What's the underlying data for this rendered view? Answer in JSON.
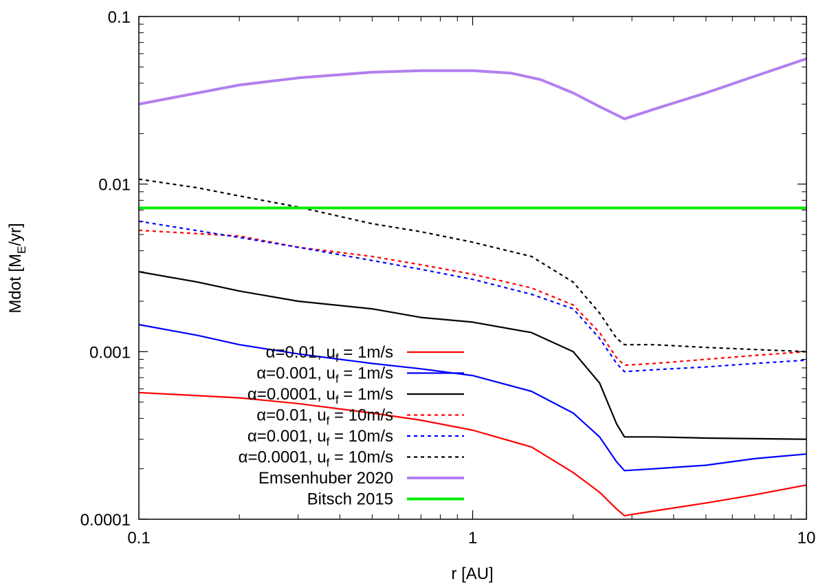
{
  "chart_data": {
    "type": "line",
    "x_scale": "log",
    "y_scale": "log",
    "xlim": [
      0.1,
      10
    ],
    "ylim": [
      0.0001,
      0.1
    ],
    "xlabel": "r [AU]",
    "ylabel": {
      "base": "Mdot [M",
      "sub": "E",
      "tail": "/yr]"
    },
    "x_ticks": [
      {
        "value": 0.1,
        "label": "0.1"
      },
      {
        "value": 1,
        "label": "1"
      },
      {
        "value": 10,
        "label": "10"
      }
    ],
    "y_ticks": [
      {
        "value": 0.0001,
        "label": "0.0001"
      },
      {
        "value": 0.001,
        "label": "0.001"
      },
      {
        "value": 0.01,
        "label": "0.01"
      },
      {
        "value": 0.1,
        "label": "0.1"
      }
    ],
    "legend_position": "bottom-left",
    "series": [
      {
        "name": "α=0.01, u_f = 1m/s",
        "label_main": "α=0.01, u",
        "label_sub": "f",
        "label_tail": " = 1m/s",
        "color": "#ff0000",
        "dash": "solid",
        "width": 2.2,
        "points": [
          [
            0.1,
            0.00057
          ],
          [
            0.2,
            0.00053
          ],
          [
            0.3,
            0.00049
          ],
          [
            0.5,
            0.00043
          ],
          [
            0.7,
            0.00039
          ],
          [
            1.0,
            0.00034
          ],
          [
            1.5,
            0.00027
          ],
          [
            2.0,
            0.00019
          ],
          [
            2.4,
            0.000145
          ],
          [
            2.7,
            0.000115
          ],
          [
            2.85,
            0.000105
          ],
          [
            3.5,
            0.000112
          ],
          [
            5.0,
            0.000125
          ],
          [
            7.0,
            0.00014
          ],
          [
            10.0,
            0.00016
          ]
        ]
      },
      {
        "name": "α=0.001, u_f = 1m/s",
        "label_main": "α=0.001, u",
        "label_sub": "f",
        "label_tail": " = 1m/s",
        "color": "#0000ff",
        "dash": "solid",
        "width": 2.2,
        "points": [
          [
            0.1,
            0.00145
          ],
          [
            0.15,
            0.00125
          ],
          [
            0.2,
            0.0011
          ],
          [
            0.3,
            0.00097
          ],
          [
            0.5,
            0.00085
          ],
          [
            0.7,
            0.00079
          ],
          [
            1.0,
            0.00072
          ],
          [
            1.5,
            0.00058
          ],
          [
            2.0,
            0.00043
          ],
          [
            2.4,
            0.00031
          ],
          [
            2.7,
            0.00022
          ],
          [
            2.85,
            0.000195
          ],
          [
            3.5,
            0.0002
          ],
          [
            5.0,
            0.00021
          ],
          [
            7.0,
            0.00023
          ],
          [
            10.0,
            0.000245
          ]
        ]
      },
      {
        "name": "α=0.0001, u_f = 1m/s",
        "label_main": "α=0.0001, u",
        "label_sub": "f",
        "label_tail": " = 1m/s",
        "color": "#000000",
        "dash": "solid",
        "width": 2.2,
        "points": [
          [
            0.1,
            0.003
          ],
          [
            0.15,
            0.0026
          ],
          [
            0.2,
            0.0023
          ],
          [
            0.3,
            0.002
          ],
          [
            0.5,
            0.0018
          ],
          [
            0.7,
            0.0016
          ],
          [
            1.0,
            0.0015
          ],
          [
            1.5,
            0.0013
          ],
          [
            2.0,
            0.001
          ],
          [
            2.4,
            0.00065
          ],
          [
            2.7,
            0.00037
          ],
          [
            2.85,
            0.00031
          ],
          [
            3.5,
            0.00031
          ],
          [
            5.0,
            0.000305
          ],
          [
            10.0,
            0.0003
          ]
        ]
      },
      {
        "name": "α=0.01, u_f = 10m/s",
        "label_main": "α=0.01, u",
        "label_sub": "f",
        "label_tail": " = 10m/s",
        "color": "#ff0000",
        "dash": "dashed",
        "width": 2.2,
        "points": [
          [
            0.1,
            0.0053
          ],
          [
            0.2,
            0.0049
          ],
          [
            0.3,
            0.0042
          ],
          [
            0.5,
            0.0037
          ],
          [
            0.7,
            0.0033
          ],
          [
            1.0,
            0.0029
          ],
          [
            1.5,
            0.0024
          ],
          [
            2.0,
            0.0019
          ],
          [
            2.4,
            0.0013
          ],
          [
            2.7,
            0.00092
          ],
          [
            2.85,
            0.00083
          ],
          [
            3.5,
            0.00085
          ],
          [
            5.0,
            0.0009
          ],
          [
            7.0,
            0.00095
          ],
          [
            10.0,
            0.001
          ]
        ]
      },
      {
        "name": "α=0.001, u_f = 10m/s",
        "label_main": "α=0.001, u",
        "label_sub": "f",
        "label_tail": " = 10m/s",
        "color": "#0000ff",
        "dash": "dashed",
        "width": 2.2,
        "points": [
          [
            0.1,
            0.006
          ],
          [
            0.2,
            0.0048
          ],
          [
            0.3,
            0.0042
          ],
          [
            0.5,
            0.0035
          ],
          [
            0.7,
            0.0031
          ],
          [
            1.0,
            0.0027
          ],
          [
            1.5,
            0.0022
          ],
          [
            2.0,
            0.0018
          ],
          [
            2.4,
            0.0012
          ],
          [
            2.7,
            0.00085
          ],
          [
            2.85,
            0.00076
          ],
          [
            3.5,
            0.00078
          ],
          [
            5.0,
            0.00081
          ],
          [
            7.0,
            0.00085
          ],
          [
            10.0,
            0.00089
          ]
        ]
      },
      {
        "name": "α=0.0001, u_f = 10m/s",
        "label_main": "α=0.0001, u",
        "label_sub": "f",
        "label_tail": " = 10m/s",
        "color": "#000000",
        "dash": "dashed",
        "width": 2.2,
        "points": [
          [
            0.1,
            0.0107
          ],
          [
            0.15,
            0.0095
          ],
          [
            0.2,
            0.0085
          ],
          [
            0.3,
            0.0073
          ],
          [
            0.5,
            0.0058
          ],
          [
            0.7,
            0.0052
          ],
          [
            1.0,
            0.0045
          ],
          [
            1.5,
            0.0037
          ],
          [
            2.0,
            0.0026
          ],
          [
            2.4,
            0.0017
          ],
          [
            2.7,
            0.0012
          ],
          [
            2.85,
            0.0011
          ],
          [
            3.5,
            0.0011
          ],
          [
            5.0,
            0.00106
          ],
          [
            7.0,
            0.00103
          ],
          [
            10.0,
            0.001
          ]
        ]
      },
      {
        "name": "Emsenhuber 2020",
        "label_main": "Emsenhuber 2020",
        "label_sub": "",
        "label_tail": "",
        "color": "#b27fef",
        "dash": "solid",
        "width": 4,
        "points": [
          [
            0.1,
            0.03
          ],
          [
            0.15,
            0.035
          ],
          [
            0.2,
            0.039
          ],
          [
            0.3,
            0.043
          ],
          [
            0.5,
            0.0465
          ],
          [
            0.7,
            0.0475
          ],
          [
            1.0,
            0.0475
          ],
          [
            1.3,
            0.046
          ],
          [
            1.6,
            0.042
          ],
          [
            2.0,
            0.035
          ],
          [
            2.4,
            0.029
          ],
          [
            2.85,
            0.0245
          ],
          [
            3.5,
            0.028
          ],
          [
            5.0,
            0.035
          ],
          [
            7.0,
            0.044
          ],
          [
            10.0,
            0.056
          ]
        ]
      },
      {
        "name": "Bitsch 2015",
        "label_main": "Bitsch 2015",
        "label_sub": "",
        "label_tail": "",
        "color": "#00ee00",
        "dash": "solid",
        "width": 4,
        "points": [
          [
            0.1,
            0.0072
          ],
          [
            10.0,
            0.0072
          ]
        ]
      }
    ]
  }
}
